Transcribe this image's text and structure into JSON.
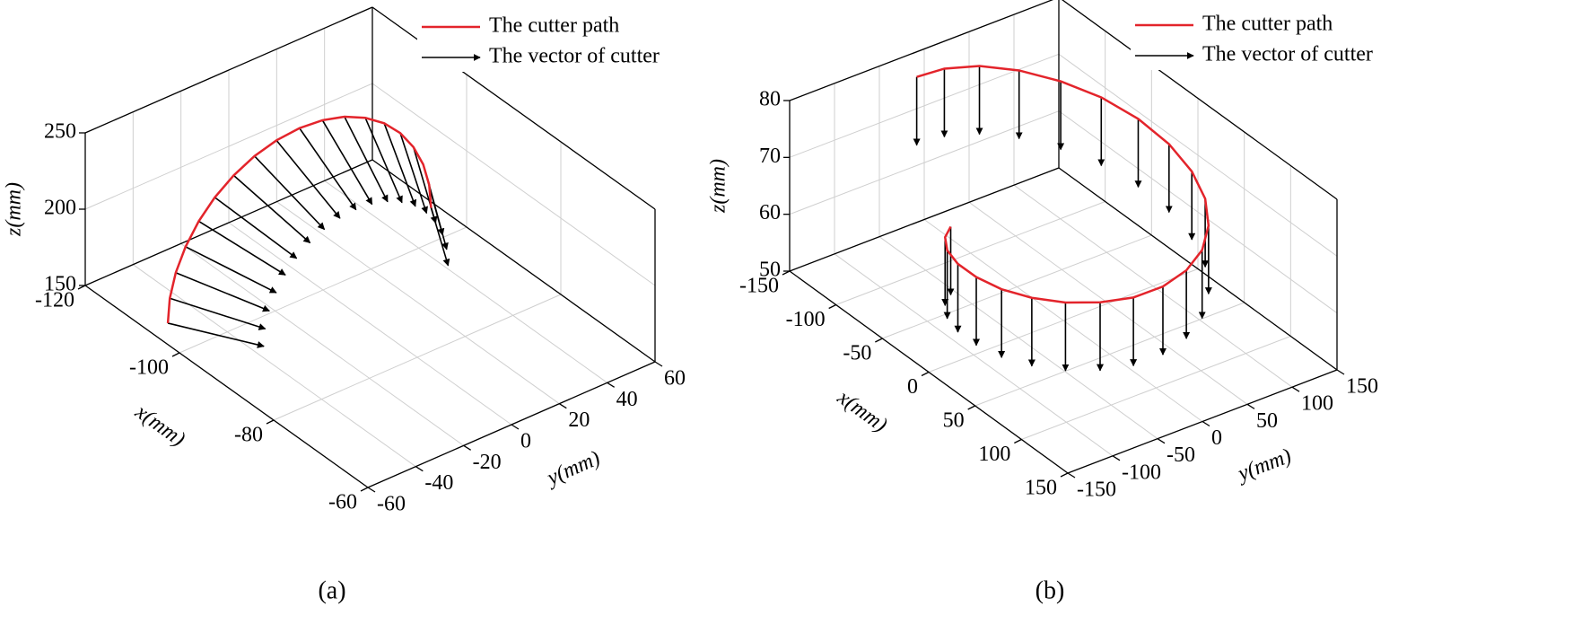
{
  "chart_data": [
    {
      "type": "vector3d",
      "caption": "(a)",
      "xlabel": "x(mm)",
      "ylabel": "y(mm)",
      "zlabel": "z(mm)",
      "xlim": [
        -120,
        -60
      ],
      "ylim": [
        -60,
        60
      ],
      "zlim": [
        150,
        250
      ],
      "xticks": [
        -120,
        -100,
        -80,
        -60
      ],
      "yticks": [
        -60,
        -40,
        -20,
        0,
        20,
        40,
        60
      ],
      "zticks": [
        150,
        200,
        250
      ],
      "grid": true,
      "legend": "upper right",
      "series": [
        {
          "name": "The cutter path",
          "color": "#e3242b",
          "x": [
            -105,
            -105,
            -105,
            -105,
            -105,
            -105,
            -105,
            -105,
            -105,
            -105,
            -105,
            -105,
            -105,
            -105,
            -105,
            -105,
            -105,
            -105,
            -105
          ],
          "y": [
            -55,
            -54.2,
            -51.7,
            -47.6,
            -42.1,
            -35.4,
            -27.5,
            -18.8,
            -9.6,
            0,
            9.6,
            18.8,
            27.5,
            35.4,
            42.1,
            47.6,
            51.7,
            54.2,
            55
          ],
          "z": [
            155,
            170.7,
            185.8,
            200,
            212.9,
            223.9,
            232.9,
            239.6,
            243.6,
            245,
            243.6,
            239.6,
            232.9,
            223.9,
            212.9,
            200,
            185.8,
            170.7,
            155
          ]
        },
        {
          "name": "The vector of cutter",
          "color": "#000000",
          "vectors": [
            [
              12,
              16.5,
              0
            ],
            [
              12,
              16.3,
              -4.7
            ],
            [
              12,
              15.5,
              -9.2
            ],
            [
              12,
              14.3,
              -13.5
            ],
            [
              12,
              12.6,
              -17.4
            ],
            [
              12,
              10.6,
              -20.7
            ],
            [
              12,
              8.3,
              -23.4
            ],
            [
              12,
              5.6,
              -25.4
            ],
            [
              12,
              2.9,
              -26.6
            ],
            [
              12,
              0,
              -27
            ],
            [
              12,
              -2.9,
              -26.6
            ],
            [
              12,
              -5.6,
              -25.4
            ],
            [
              12,
              -8.3,
              -23.4
            ],
            [
              12,
              -10.6,
              -20.7
            ],
            [
              12,
              -12.6,
              -17.4
            ],
            [
              12,
              -14.3,
              -13.5
            ],
            [
              12,
              -15.5,
              -9.2
            ],
            [
              12,
              -16.3,
              -4.7
            ],
            [
              12,
              -16.5,
              0
            ]
          ]
        }
      ]
    },
    {
      "type": "vector3d",
      "caption": "(b)",
      "xlabel": "x(mm)",
      "ylabel": "y(mm)",
      "zlabel": "z(mm)",
      "xlim": [
        -150,
        150
      ],
      "ylim": [
        -150,
        150
      ],
      "zlim": [
        50,
        80
      ],
      "xticks": [
        -150,
        -100,
        -50,
        0,
        50,
        100,
        150
      ],
      "yticks": [
        -150,
        -100,
        -50,
        0,
        50,
        100,
        150
      ],
      "zticks": [
        50,
        60,
        70,
        80
      ],
      "grid": true,
      "legend": "upper right",
      "series": [
        {
          "name": "The cutter path",
          "color": "#e3242b",
          "x": [
            -125.6,
            -128.3,
            -122.2,
            -108.1,
            -87,
            -60.7,
            -31,
            0,
            30.1,
            57.2,
            79.6,
            96,
            105.4,
            107.4,
            102.1,
            90,
            72.3,
            50.2,
            25.6,
            0,
            -24.7,
            -46.8,
            -64.8,
            -77.9
          ],
          "y": [
            -33.6,
            0,
            32.8,
            62.4,
            87,
            105,
            115.5,
            117.8,
            112.1,
            99,
            79.6,
            55.5,
            28.2,
            0,
            -27.4,
            -52,
            -72.3,
            -87,
            -95.3,
            -97,
            -92,
            -81,
            -64.8,
            -45
          ],
          "z": [
            80,
            79.1,
            78.3,
            77.4,
            76.5,
            75.7,
            74.8,
            73.9,
            73,
            72.2,
            71.3,
            70.4,
            69.6,
            68.7,
            67.8,
            67,
            66.1,
            65.2,
            64.3,
            63.5,
            62.6,
            61.7,
            60.9,
            60
          ]
        },
        {
          "name": "The vector of cutter",
          "color": "#000000",
          "vectors": [
            [
              0,
              0,
              -12
            ],
            [
              0,
              0,
              -12
            ],
            [
              0,
              0,
              -12
            ],
            [
              0,
              0,
              -12
            ],
            [
              0,
              0,
              -12
            ],
            [
              0,
              0,
              -12
            ],
            [
              0,
              0,
              -12
            ],
            [
              0,
              0,
              -12
            ],
            [
              0,
              0,
              -12
            ],
            [
              0,
              0,
              -12
            ],
            [
              0,
              0,
              -12
            ],
            [
              0,
              0,
              -12
            ],
            [
              0,
              0,
              -12
            ],
            [
              0,
              0,
              -12
            ],
            [
              0,
              0,
              -12
            ],
            [
              0,
              0,
              -12
            ],
            [
              0,
              0,
              -12
            ],
            [
              0,
              0,
              -12
            ],
            [
              0,
              0,
              -12
            ],
            [
              0,
              0,
              -12
            ],
            [
              0,
              0,
              -12
            ],
            [
              0,
              0,
              -12
            ],
            [
              0,
              0,
              -12
            ],
            [
              0,
              0,
              -12
            ]
          ]
        }
      ]
    }
  ]
}
